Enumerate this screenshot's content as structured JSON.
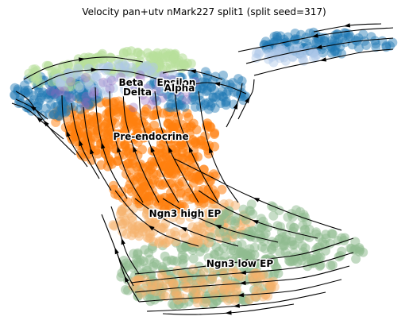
{
  "chart_data": {
    "type": "scatter",
    "title": "Velocity pan+utv nMark227 split1 (split seed=317)",
    "xlabel": "",
    "ylabel": "",
    "axes_visible": false,
    "grid": false,
    "legend": "none (labels on data)",
    "colors": {
      "ngn3_low": "#8fbc8f",
      "ngn3_high": "#f6b26b",
      "pre_endocrine": "#ff7f0e",
      "beta": "#1f77b4",
      "alpha": "#aec7e8",
      "delta": "#9467bd",
      "epsilon": "#b8df9b",
      "streamline": "#000000"
    },
    "cluster_labels": [
      {
        "name": "Beta",
        "x": 165,
        "y": 108
      },
      {
        "name": "Epsilon",
        "x": 222,
        "y": 108
      },
      {
        "name": "Delta",
        "x": 173,
        "y": 120
      },
      {
        "name": "Alpha",
        "x": 226,
        "y": 115
      },
      {
        "name": "Pre-endocrine",
        "x": 190,
        "y": 176
      },
      {
        "name": "Ngn3 high EP",
        "x": 233,
        "y": 273
      },
      {
        "name": "Ngn3 low EP",
        "x": 302,
        "y": 336
      }
    ]
  }
}
